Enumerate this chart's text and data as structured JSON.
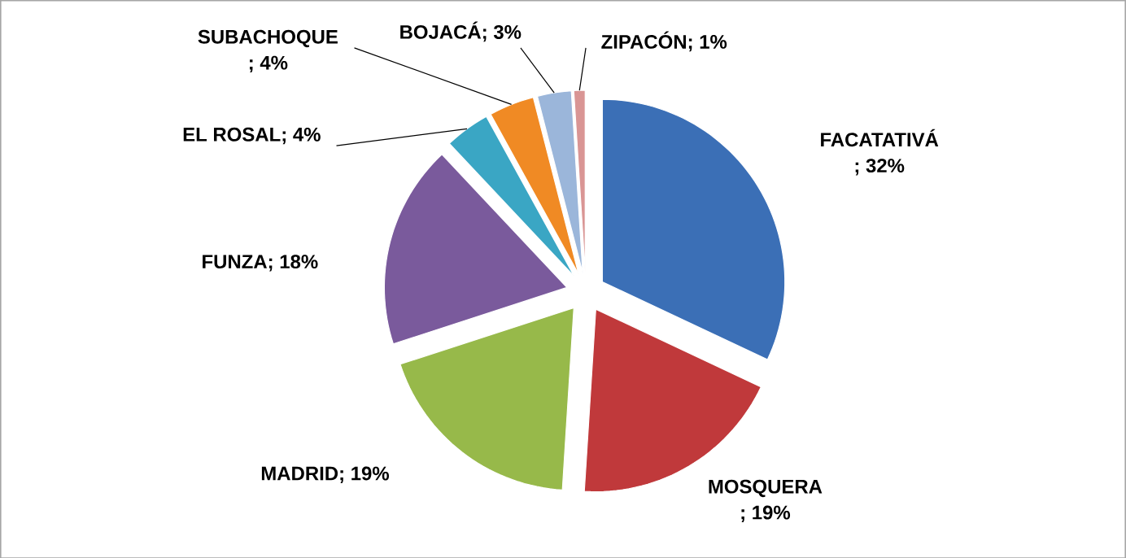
{
  "chart_data": {
    "type": "pie",
    "categories": [
      "FACATATIVÁ",
      "MOSQUERA",
      "MADRID",
      "FUNZA",
      "EL ROSAL",
      "SUBACHOQUE",
      "BOJACÁ",
      "ZIPACÓN"
    ],
    "values": [
      32,
      19,
      19,
      18,
      4,
      4,
      3,
      1
    ],
    "colors": [
      "#3b6fb6",
      "#c0393b",
      "#97b94a",
      "#7a5a9c",
      "#3aa6c4",
      "#f08a24",
      "#9bb6da",
      "#d99594"
    ],
    "value_labels": [
      "; 32%",
      "; 19%",
      "; 19%",
      "; 18%",
      "; 4%",
      "; 4%",
      "; 3%",
      "; 1%"
    ]
  }
}
